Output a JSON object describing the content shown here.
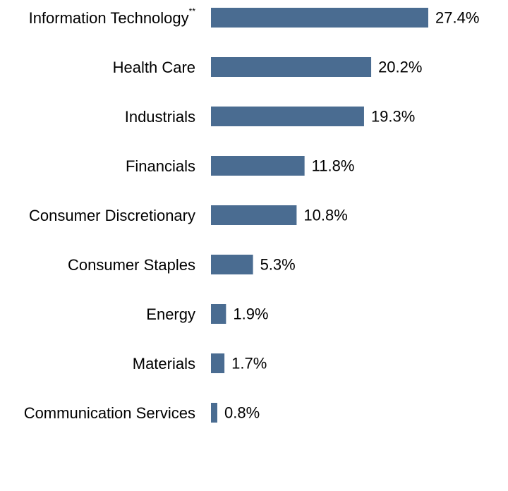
{
  "chart_data": {
    "type": "bar",
    "orientation": "horizontal",
    "categories": [
      "Information Technology",
      "Health Care",
      "Industrials",
      "Financials",
      "Consumer Discretionary",
      "Consumer Staples",
      "Energy",
      "Materials",
      "Communication Services"
    ],
    "category_footnotes": [
      "**",
      "",
      "",
      "",
      "",
      "",
      "",
      "",
      ""
    ],
    "values": [
      27.4,
      20.2,
      19.3,
      11.8,
      10.8,
      5.3,
      1.9,
      1.7,
      0.8
    ],
    "value_labels": [
      "27.4%",
      "20.2%",
      "19.3%",
      "11.8%",
      "10.8%",
      "5.3%",
      "1.9%",
      "1.7%",
      "0.8%"
    ],
    "bar_color": "#4a6c91",
    "xlim": [
      0,
      27.4
    ],
    "grid": false,
    "legend": "none"
  }
}
